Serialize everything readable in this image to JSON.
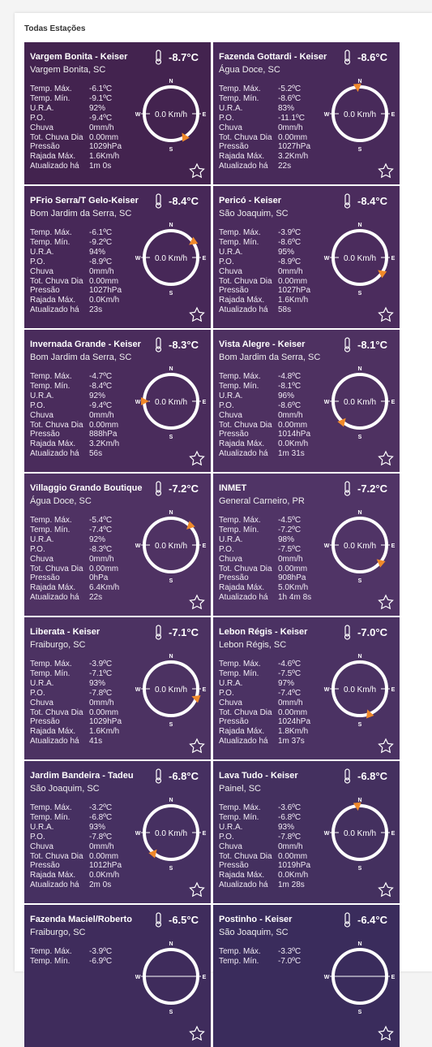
{
  "header": {
    "title": "Todas Estações"
  },
  "field_labels": [
    "Temp. Máx.",
    "Temp. Mín.",
    "U.R.A.",
    "P.O.",
    "Chuva",
    "Tot. Chuva Dia",
    "Pressão",
    "Rajada Máx.",
    "Atualizado há"
  ],
  "compass": [
    "N",
    "E",
    "S",
    "W"
  ],
  "stations": [
    {
      "name": "Vargem Bonita - Keiser",
      "location": "Vargem Bonita, SC",
      "temp": "-8.7°C",
      "wind": "0.0 Km/h",
      "arrow_angle": 150,
      "values": [
        "-6.1ºC",
        "-9.1ºC",
        "92%",
        "-9.4ºC",
        "0mm/h",
        "0.00mm",
        "1029hPa",
        "1.6Km/h",
        "1m 0s"
      ]
    },
    {
      "name": "Fazenda Gottardi - Keiser",
      "location": "Água Doce, SC",
      "temp": "-8.6°C",
      "wind": "0.0 Km/h",
      "arrow_angle": 355,
      "values": [
        "-5.2ºC",
        "-8.6ºC",
        "83%",
        "-11.1ºC",
        "0mm/h",
        "0.00mm",
        "1027hPa",
        "3.2Km/h",
        "22s"
      ]
    },
    {
      "name": "PFrio Serra/T Gelo-Keiser",
      "location": "Bom Jardim da Serra, SC",
      "temp": "-8.4°C",
      "wind": "0.0 Km/h",
      "arrow_angle": 55,
      "values": [
        "-6.1ºC",
        "-9.2ºC",
        "94%",
        "-8.9ºC",
        "0mm/h",
        "0.00mm",
        "1027hPa",
        "0.0Km/h",
        "23s"
      ]
    },
    {
      "name": "Pericó - Keiser",
      "location": "São Joaquim, SC",
      "temp": "-8.4°C",
      "wind": "0.0 Km/h",
      "arrow_angle": 125,
      "values": [
        "-3.9ºC",
        "-8.6ºC",
        "95%",
        "-8.9ºC",
        "0mm/h",
        "0.00mm",
        "1027hPa",
        "1.6Km/h",
        "58s"
      ]
    },
    {
      "name": "Invernada Grande - Keiser",
      "location": "Bom Jardim da Serra, SC",
      "temp": "-8.3°C",
      "wind": "0.0 Km/h",
      "arrow_angle": 270,
      "values": [
        "-4.7ºC",
        "-8.4ºC",
        "92%",
        "-9.4ºC",
        "0mm/h",
        "0.00mm",
        "888hPa",
        "3.2Km/h",
        "56s"
      ]
    },
    {
      "name": "Vista Alegre - Keiser",
      "location": "Bom Jardim da Serra, SC",
      "temp": "-8.1°C",
      "wind": "0.0 Km/h",
      "arrow_angle": 220,
      "values": [
        "-4.8ºC",
        "-8.1ºC",
        "96%",
        "-8.6ºC",
        "0mm/h",
        "0.00mm",
        "1014hPa",
        "0.0Km/h",
        "1m 31s"
      ]
    },
    {
      "name": "Villaggio Grando Boutique",
      "location": "Água Doce, SC",
      "temp": "-7.2°C",
      "wind": "0.0 Km/h",
      "arrow_angle": 45,
      "values": [
        "-5.4ºC",
        "-7.4ºC",
        "92%",
        "-8.3ºC",
        "0mm/h",
        "0.00mm",
        "0hPa",
        "6.4Km/h",
        "22s"
      ]
    },
    {
      "name": "INMET",
      "location": "General Carneiro, PR",
      "temp": "-7.2°C",
      "wind": "0.0 Km/h",
      "arrow_angle": 130,
      "values": [
        "-4.5ºC",
        "-7.2ºC",
        "98%",
        "-7.5ºC",
        "0mm/h",
        "0.00mm",
        "908hPa",
        "5.0Km/h",
        "1h 4m 8s"
      ]
    },
    {
      "name": "Liberata - Keiser",
      "location": "Fraiburgo, SC",
      "temp": "-7.1°C",
      "wind": "0.0 Km/h",
      "arrow_angle": 110,
      "values": [
        "-3.9ºC",
        "-7.1ºC",
        "93%",
        "-7.8ºC",
        "0mm/h",
        "0.00mm",
        "1029hPa",
        "1.6Km/h",
        "41s"
      ]
    },
    {
      "name": "Lebon Régis - Keiser",
      "location": "Lebon Régis, SC",
      "temp": "-7.0°C",
      "wind": "0.0 Km/h",
      "arrow_angle": 160,
      "values": [
        "-4.6ºC",
        "-7.5ºC",
        "97%",
        "-7.4ºC",
        "0mm/h",
        "0.00mm",
        "1024hPa",
        "1.8Km/h",
        "1m 37s"
      ]
    },
    {
      "name": "Jardim Bandeira - Tadeu",
      "location": "São Joaquim, SC",
      "temp": "-6.8°C",
      "wind": "0.0 Km/h",
      "arrow_angle": 220,
      "values": [
        "-3.2ºC",
        "-6.8ºC",
        "93%",
        "-7.8ºC",
        "0mm/h",
        "0.00mm",
        "1012hPa",
        "0.0Km/h",
        "2m 0s"
      ]
    },
    {
      "name": "Lava Tudo - Keiser",
      "location": "Painel, SC",
      "temp": "-6.8°C",
      "wind": "0.0 Km/h",
      "arrow_angle": 355,
      "values": [
        "-3.6ºC",
        "-6.8ºC",
        "93%",
        "-7.8ºC",
        "0mm/h",
        "0.00mm",
        "1019hPa",
        "0.0Km/h",
        "1m 28s"
      ]
    },
    {
      "name": "Fazenda Maciel/Roberto",
      "location": "Fraiburgo, SC",
      "temp": "-6.5°C",
      "values": [
        "-3.9ºC",
        "-6.9ºC"
      ]
    },
    {
      "name": "Postinho - Keiser",
      "location": "São Joaquim, SC",
      "temp": "-6.4°C",
      "values": [
        "-3.3ºC",
        "-7.0ºC"
      ]
    }
  ]
}
